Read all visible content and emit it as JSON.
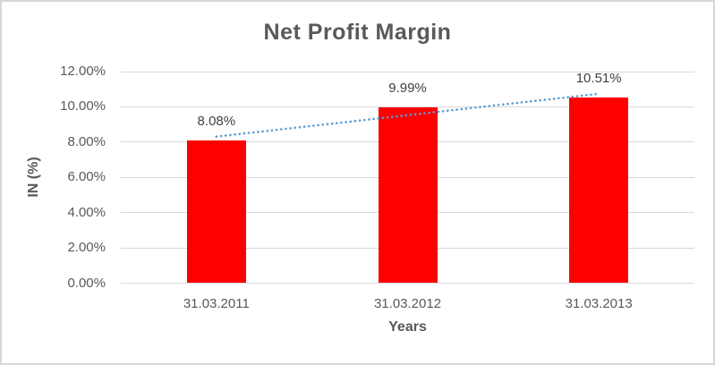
{
  "chart_data": {
    "type": "bar",
    "title": "Net Profit Margin",
    "xlabel": "Years",
    "ylabel": "IN (%)",
    "categories": [
      "31.03.2011",
      "31.03.2012",
      "31.03.2013"
    ],
    "values": [
      8.08,
      9.99,
      10.51
    ],
    "data_labels": [
      "8.08%",
      "9.99%",
      "10.51%"
    ],
    "y_tick_values": [
      0,
      2,
      4,
      6,
      8,
      10,
      12
    ],
    "y_tick_labels": [
      "0.00%",
      "2.00%",
      "4.00%",
      "6.00%",
      "8.00%",
      "10.00%",
      "12.00%"
    ],
    "ylim": [
      0,
      12
    ],
    "grid": true,
    "legend": "none",
    "trendline": {
      "type": "linear",
      "style": "dotted"
    },
    "colors": {
      "bar": "#ff0000",
      "trendline": "#5b9bd5",
      "gridline": "#d9d9d9",
      "axis_text": "#595959",
      "data_label_text": "#404040",
      "title_text": "#595959",
      "frame_border": "#d7d7d7"
    }
  }
}
